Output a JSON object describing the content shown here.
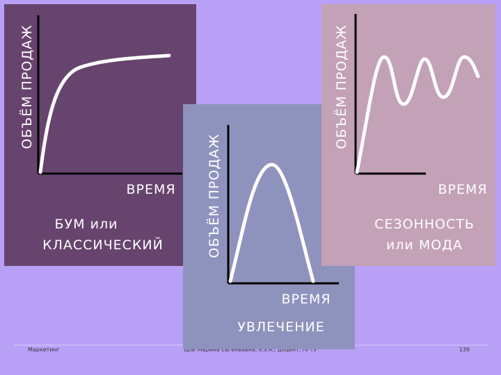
{
  "panels": [
    {
      "y_label": "ОБЪЁМ ПРОДАЖ",
      "x_label": "ВРЕМЯ",
      "caption": [
        "БУМ или",
        "КЛАССИЧЕСКИЙ"
      ]
    },
    {
      "y_label": "ОБЪЁМ ПРОДАЖ",
      "x_label": "ВРЕМЯ",
      "caption": [
        "УВЛЕЧЕНИЕ"
      ]
    },
    {
      "y_label": "ОБЪЁМ ПРОДАЖ",
      "x_label": "ВРЕМЯ",
      "caption": [
        "СЕЗОННОСТЬ",
        "или МОДА"
      ]
    }
  ],
  "footer": {
    "left": "Маркетинг",
    "center": "Цой Марина Евгеньевна, к.э.н., доцент, НГТУ",
    "right": "139"
  }
}
